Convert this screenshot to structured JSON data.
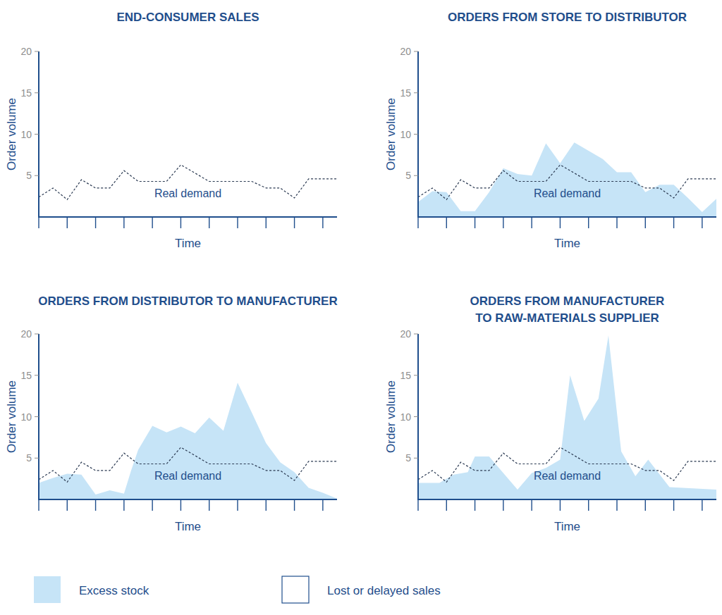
{
  "chart_data": [
    {
      "type": "line",
      "title": "END-CONSUMER SALES",
      "x_label": "Time",
      "y_label": "Order volume",
      "xlim": [
        0,
        21
      ],
      "xticks": [
        0,
        2,
        4,
        6,
        8,
        10,
        12,
        14,
        16,
        18,
        20
      ],
      "ylim": [
        0,
        20
      ],
      "yticks": [
        5,
        10,
        15,
        20
      ],
      "tick_labels": "y",
      "grid": false,
      "series": [
        {
          "name": "Real demand",
          "type": "line",
          "line_style": "dashed",
          "color": "#2b3a52",
          "x": [
            0,
            1,
            2,
            3,
            4,
            5,
            6,
            7,
            8,
            9,
            10,
            11,
            12,
            13,
            14,
            15,
            16,
            17,
            18,
            19,
            20,
            21
          ],
          "values": [
            2.4,
            3.5,
            2.1,
            4.5,
            3.5,
            3.5,
            5.6,
            4.3,
            4.3,
            4.3,
            6.3,
            5.3,
            4.3,
            4.3,
            4.3,
            4.3,
            3.5,
            3.5,
            2.3,
            4.6,
            4.6,
            4.6
          ]
        }
      ]
    },
    {
      "type": "line",
      "title": "ORDERS FROM STORE TO DISTRIBUTOR",
      "x_label": "Time",
      "y_label": "Order volume",
      "xlim": [
        0,
        21
      ],
      "xticks": [
        0,
        2,
        4,
        6,
        8,
        10,
        12,
        14,
        16,
        18,
        20
      ],
      "ylim": [
        0,
        20
      ],
      "yticks": [
        5,
        10,
        15,
        20
      ],
      "tick_labels": "y",
      "grid": false,
      "series": [
        {
          "type": "area",
          "color": "#c6e4f7",
          "x": [
            0,
            1,
            2,
            3,
            4,
            5,
            6,
            7,
            8,
            9,
            10,
            11,
            12,
            13,
            14,
            15,
            16,
            17,
            18,
            19,
            20,
            21
          ],
          "values": [
            1.8,
            3.1,
            3.0,
            0.7,
            0.7,
            3.0,
            5.9,
            5.2,
            5.0,
            8.9,
            6.5,
            9.0,
            8.0,
            7.0,
            5.4,
            5.4,
            3.0,
            3.9,
            3.9,
            2.3,
            0.6,
            2.2
          ]
        },
        {
          "name": "Real demand",
          "type": "line",
          "line_style": "dashed",
          "color": "#2b3a52",
          "x": [
            0,
            1,
            2,
            3,
            4,
            5,
            6,
            7,
            8,
            9,
            10,
            11,
            12,
            13,
            14,
            15,
            16,
            17,
            18,
            19,
            20,
            21
          ],
          "values": [
            2.4,
            3.5,
            2.1,
            4.5,
            3.5,
            3.5,
            5.6,
            4.3,
            4.3,
            4.3,
            6.3,
            5.3,
            4.3,
            4.3,
            4.3,
            4.3,
            3.5,
            3.5,
            2.3,
            4.6,
            4.6,
            4.6
          ]
        }
      ]
    },
    {
      "type": "line",
      "title": "ORDERS FROM DISTRIBUTOR TO MANUFACTURER",
      "x_label": "Time",
      "y_label": "Order volume",
      "xlim": [
        0,
        21
      ],
      "xticks": [
        0,
        2,
        4,
        6,
        8,
        10,
        12,
        14,
        16,
        18,
        20
      ],
      "ylim": [
        0,
        20
      ],
      "yticks": [
        5,
        10,
        15,
        20
      ],
      "tick_labels": "y",
      "grid": false,
      "series": [
        {
          "type": "area",
          "color": "#c6e4f7",
          "x": [
            0,
            1,
            2,
            3,
            4,
            5,
            6,
            6.5,
            7,
            8,
            9,
            10,
            11,
            12,
            13,
            14,
            15,
            16,
            17,
            18,
            19,
            20,
            21
          ],
          "values": [
            2.0,
            2.6,
            3.1,
            3.0,
            0.6,
            1.1,
            0.7,
            3.5,
            6.0,
            8.9,
            8.1,
            8.8,
            8.0,
            9.9,
            8.3,
            14.1,
            10.5,
            6.8,
            4.5,
            3.3,
            1.4,
            0.8,
            0.1
          ]
        },
        {
          "name": "Real demand",
          "type": "line",
          "line_style": "dashed",
          "color": "#2b3a52",
          "x": [
            0,
            1,
            2,
            3,
            4,
            5,
            6,
            7,
            8,
            9,
            10,
            11,
            12,
            13,
            14,
            15,
            16,
            17,
            18,
            19,
            20,
            21
          ],
          "values": [
            2.4,
            3.5,
            2.1,
            4.5,
            3.5,
            3.5,
            5.6,
            4.3,
            4.3,
            4.3,
            6.3,
            5.3,
            4.3,
            4.3,
            4.3,
            4.3,
            3.5,
            3.5,
            2.3,
            4.6,
            4.6,
            4.6
          ]
        }
      ]
    },
    {
      "type": "line",
      "title": "ORDERS FROM MANUFACTURER\nTO RAW-MATERIALS SUPPLIER",
      "x_label": "Time",
      "y_label": "Order volume",
      "xlim": [
        0,
        21
      ],
      "xticks": [
        0,
        2,
        4,
        6,
        8,
        10,
        12,
        14,
        16,
        18,
        20
      ],
      "ylim": [
        0,
        20
      ],
      "yticks": [
        5,
        10,
        15,
        20
      ],
      "tick_labels": "y",
      "grid": false,
      "series": [
        {
          "type": "area",
          "color": "#c6e4f7",
          "x": [
            0,
            1.5,
            2.5,
            3.5,
            4,
            5,
            7,
            8,
            9,
            10,
            10.7,
            11.7,
            12.7,
            13.4,
            14.3,
            15.3,
            16.2,
            17.7,
            21
          ],
          "values": [
            2.0,
            2.0,
            3.0,
            3.3,
            5.2,
            5.2,
            1.2,
            3.2,
            3.8,
            4.8,
            15.0,
            9.5,
            12.2,
            19.8,
            5.8,
            2.8,
            4.8,
            1.5,
            1.2
          ]
        },
        {
          "name": "Real demand",
          "type": "line",
          "line_style": "dashed",
          "color": "#2b3a52",
          "x": [
            0,
            1,
            2,
            3,
            4,
            5,
            6,
            7,
            8,
            9,
            10,
            11,
            12,
            13,
            14,
            15,
            16,
            17,
            18,
            19,
            20,
            21
          ],
          "values": [
            2.4,
            3.5,
            2.1,
            4.5,
            3.5,
            3.5,
            5.6,
            4.3,
            4.3,
            4.3,
            6.3,
            5.3,
            4.3,
            4.3,
            4.3,
            4.3,
            3.5,
            3.5,
            2.3,
            4.6,
            4.6,
            4.6
          ]
        }
      ]
    }
  ],
  "legend": {
    "items": [
      {
        "label": "Excess stock",
        "color": "#c6e4f7"
      },
      {
        "label": "Lost or delayed sales",
        "color": "#ffffff"
      }
    ]
  }
}
